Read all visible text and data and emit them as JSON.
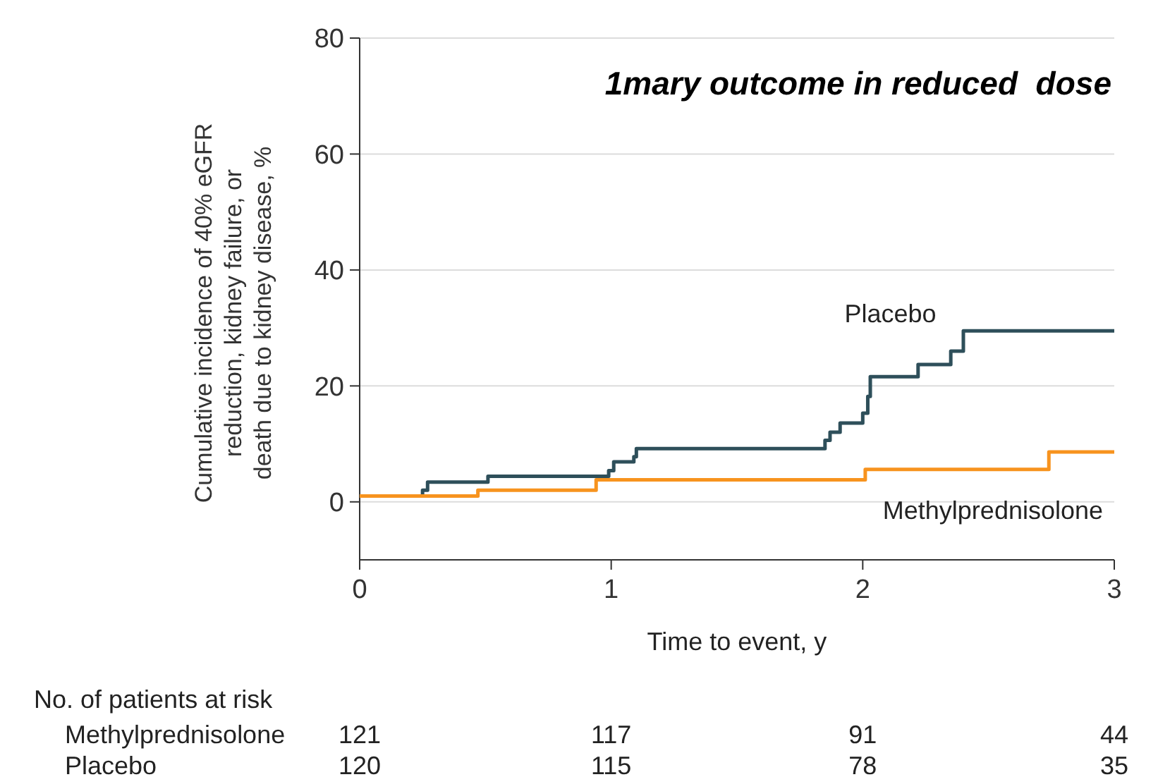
{
  "chart_data": {
    "type": "step",
    "title": "1mary outcome in reduced  dose",
    "xlabel": "Time to event, y",
    "ylabel": "Cumulative incidence of 40% eGFR reduction, kidney failure, or death due to kidney disease, %",
    "xlim": [
      0,
      3
    ],
    "xticks": [
      0,
      1,
      2,
      3
    ],
    "ylim": [
      -10,
      80
    ],
    "yticks": [
      0,
      20,
      40,
      60,
      80
    ],
    "grid": "y",
    "series": [
      {
        "name": "Placebo",
        "color": "#2e4f5a",
        "x": [
          0,
          0.25,
          0.27,
          0.51,
          0.99,
          1.01,
          1.09,
          1.1,
          1.85,
          1.87,
          1.91,
          2.0,
          2.02,
          2.03,
          2.22,
          2.35,
          2.4,
          3
        ],
        "values": [
          1,
          2,
          3.4,
          4.4,
          5.4,
          6.9,
          7.8,
          9.2,
          10.6,
          12,
          13.6,
          15.3,
          18.2,
          21.6,
          23.7,
          26,
          29.5,
          29.5
        ]
      },
      {
        "name": "Methylprednisolone",
        "color": "#f7931e",
        "x": [
          0,
          0.47,
          0.94,
          2.01,
          2.74,
          3
        ],
        "values": [
          1,
          2,
          3.8,
          5.6,
          8.6,
          8.6
        ]
      }
    ],
    "annotations": [
      "No. of patients at risk",
      "Methylprednisolone",
      "121",
      "117",
      "91",
      "44",
      "Placebo",
      "120",
      "115",
      "78",
      "35"
    ]
  }
}
